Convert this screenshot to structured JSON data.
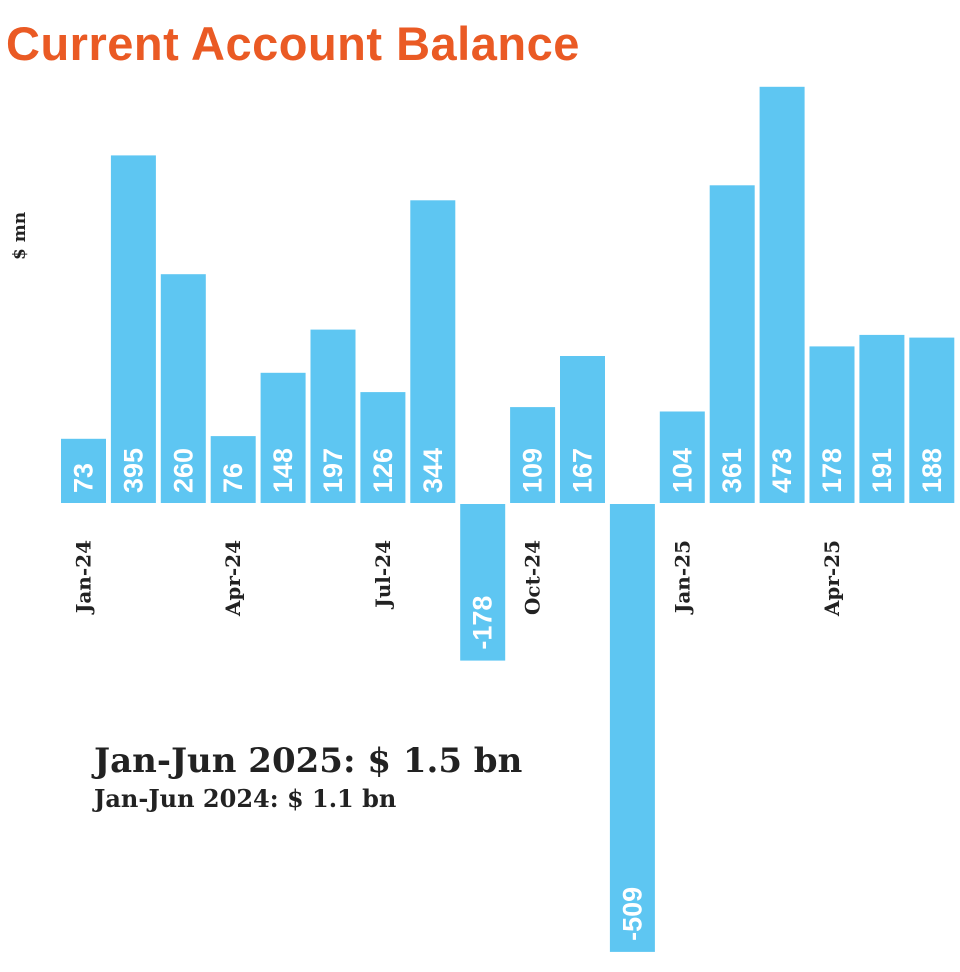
{
  "title": "Current Account Balance",
  "summary": {
    "line1": "Jan-Jun 2025: $ 1.5 bn",
    "line2": "Jan-Jun 2024: $ 1.1 bn"
  },
  "colors": {
    "bar": "#5ec6f2",
    "title": "#ea5a24",
    "bar_label": "#ffffff",
    "text": "#222222"
  },
  "chart_data": {
    "type": "bar",
    "title": "Current Account Balance",
    "ylabel": "$ mn",
    "xlabel": "",
    "categories": [
      "Jan-24",
      "Feb-24",
      "Mar-24",
      "Apr-24",
      "May-24",
      "Jun-24",
      "Jul-24",
      "Aug-24",
      "Sep-24",
      "Oct-24",
      "Nov-24",
      "Dec-24",
      "Jan-25",
      "Feb-25",
      "Mar-25",
      "Apr-25",
      "May-25",
      "Jun-25"
    ],
    "visible_tick_labels": [
      "Jan-24",
      "Apr-24",
      "Jul-24",
      "Oct-24",
      "Jan-25",
      "Apr-25"
    ],
    "values": [
      73,
      395,
      260,
      76,
      148,
      197,
      126,
      344,
      -178,
      109,
      167,
      -509,
      104,
      361,
      473,
      178,
      191,
      188
    ],
    "ylim": [
      -509,
      473
    ],
    "grid": false,
    "legend": "none",
    "data_labels": "inside-bar, rotated vertical"
  }
}
